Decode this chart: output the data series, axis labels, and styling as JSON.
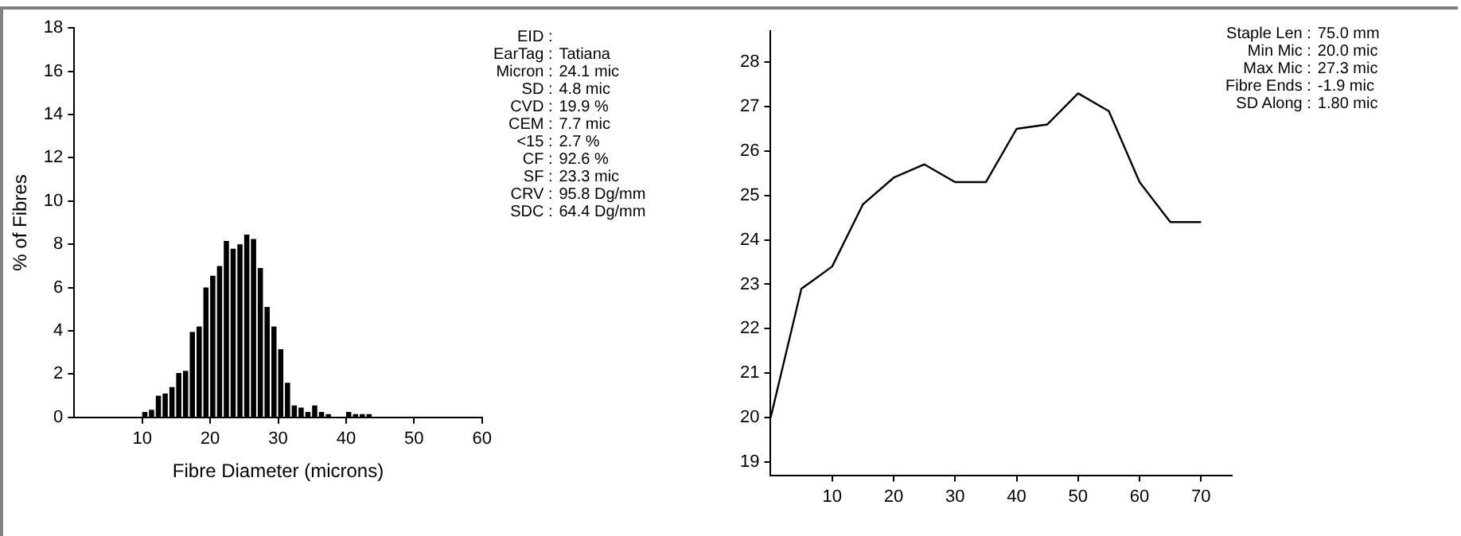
{
  "chart_data": [
    {
      "type": "histogram",
      "xlabel": "Fibre Diameter (microns)",
      "ylabel": "% of Fibres",
      "bins": [
        10,
        11,
        12,
        13,
        14,
        15,
        16,
        17,
        18,
        19,
        20,
        21,
        22,
        23,
        24,
        25,
        26,
        27,
        28,
        29,
        30,
        31,
        32,
        33,
        34,
        35,
        36,
        37,
        38,
        39,
        40,
        41,
        42,
        43,
        44
      ],
      "values": [
        0.25,
        0.35,
        1.0,
        1.1,
        1.4,
        2.05,
        2.15,
        3.95,
        4.2,
        6.0,
        6.55,
        7.0,
        8.15,
        7.8,
        8.0,
        8.45,
        8.25,
        6.9,
        5.1,
        4.2,
        3.15,
        1.6,
        0.55,
        0.45,
        0.25,
        0.55,
        0.25,
        0.15,
        0,
        0,
        0.25,
        0.15,
        0.15,
        0.15
      ],
      "color": "#000000",
      "xlim": [
        0,
        60
      ],
      "xticks": [
        10,
        20,
        30,
        40,
        50,
        60
      ],
      "ylim": [
        0,
        18
      ],
      "yticks": [
        0,
        2,
        4,
        6,
        8,
        10,
        12,
        14,
        16,
        18
      ],
      "grid": false,
      "legend": false
    },
    {
      "type": "other",
      "annotations": [
        "EID :",
        "EarTag : Tatiana",
        "Micron : 24.1 mic",
        "SD : 4.8 mic",
        "CVD : 19.9 %",
        "CEM : 7.7 mic",
        "<15 : 2.7 %",
        "CF : 92.6 %",
        "SF : 23.3 mic",
        "CRV : 95.8 Dg/mm",
        "SDC : 64.4 Dg/mm"
      ]
    },
    {
      "type": "line",
      "x": [
        0,
        5,
        10,
        15,
        20,
        25,
        30,
        35,
        40,
        45,
        50,
        55,
        60,
        65,
        70
      ],
      "values": [
        20.0,
        22.9,
        23.4,
        24.8,
        25.4,
        25.7,
        25.3,
        25.3,
        26.5,
        26.6,
        27.3,
        26.9,
        25.3,
        24.4,
        24.4
      ],
      "color": "#000000",
      "xlim": [
        0,
        75
      ],
      "xticks": [
        10,
        20,
        30,
        40,
        50,
        60,
        70
      ],
      "ylim": [
        18.7,
        28.7
      ],
      "yticks": [
        19,
        20,
        21,
        22,
        23,
        24,
        25,
        26,
        27,
        28
      ],
      "grid": false,
      "legend": false,
      "marker": "none"
    },
    {
      "type": "other",
      "annotations": [
        "Staple Len : 75.0 mm",
        "Min Mic : 20.0 mic",
        "Max Mic : 27.3 mic",
        "Fibre Ends : -1.9 mic",
        "SD Along : 1.80 mic"
      ]
    }
  ]
}
